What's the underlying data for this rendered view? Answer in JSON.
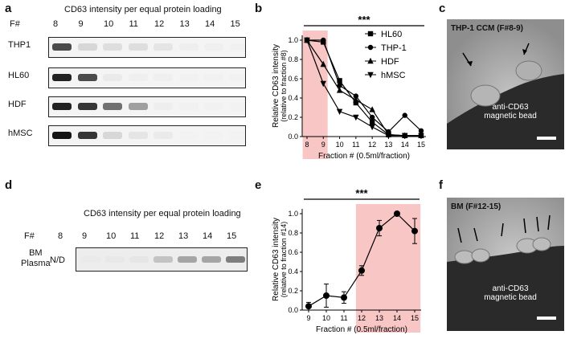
{
  "panel_labels": {
    "a": "a",
    "b": "b",
    "c": "c",
    "d": "d",
    "e": "e",
    "f": "f"
  },
  "panel_a": {
    "title": "CD63 intensity per equal protein loading",
    "f_label": "F#",
    "fractions": [
      "8",
      "9",
      "10",
      "11",
      "12",
      "13",
      "14",
      "15"
    ],
    "rows": [
      {
        "label": "THP1",
        "intensities": [
          0.85,
          0.35,
          0.3,
          0.3,
          0.25,
          0.15,
          0.12,
          0.05
        ]
      },
      {
        "label": "HL60",
        "intensities": [
          0.95,
          0.85,
          0.2,
          0.12,
          0.1,
          0.06,
          0.06,
          0.05
        ]
      },
      {
        "label": "HDF",
        "intensities": [
          0.95,
          0.9,
          0.75,
          0.6,
          0.15,
          0.05,
          0.04,
          0.03
        ]
      },
      {
        "label": "hMSC",
        "intensities": [
          0.98,
          0.9,
          0.35,
          0.25,
          0.2,
          0.03,
          0.02,
          0.02
        ]
      }
    ]
  },
  "panel_d": {
    "title": "CD63 intensity per equal protein loading",
    "f_label": "F#",
    "fractions": [
      "8",
      "9",
      "10",
      "11",
      "12",
      "13",
      "14",
      "15"
    ],
    "row_label_line1": "BM",
    "row_label_line2": "Plasma",
    "nd_label": "N/D",
    "intensities": [
      0.0,
      0.02,
      0.05,
      0.1,
      0.45,
      0.6,
      0.6,
      0.75
    ]
  },
  "panel_c": {
    "caption": "THP-1 CCM (F#8-9)",
    "bead_line1": "anti-CD63",
    "bead_line2": "magnetic bead"
  },
  "panel_f": {
    "caption": "BM (F#12-15)",
    "bead_line1": "anti-CD63",
    "bead_line2": "magnetic bead"
  },
  "chart_data": [
    {
      "id": "b",
      "type": "line",
      "ylabel": "Relative CD63 intensity",
      "ylabel2": "(relative to fraction #8)",
      "xlabel": "Fraction # (0.5ml/fraction)",
      "significance": "***",
      "x": [
        8,
        9,
        10,
        11,
        12,
        13,
        14,
        15
      ],
      "xticklabels": [
        "8",
        "9",
        "10",
        "11",
        "12",
        "13",
        "14",
        "15"
      ],
      "yticks": [
        "0.0",
        "0.2",
        "0.4",
        "0.6",
        "0.8",
        "1.0"
      ],
      "ylim": [
        0,
        1.05
      ],
      "highlight": [
        8,
        9
      ],
      "series": [
        {
          "name": "HL60",
          "marker": "square",
          "values": [
            1.0,
            0.98,
            0.58,
            0.35,
            0.15,
            0.02,
            0.01,
            0.01
          ]
        },
        {
          "name": "THP-1",
          "marker": "circle",
          "values": [
            1.0,
            1.0,
            0.53,
            0.42,
            0.2,
            0.05,
            0.22,
            0.06
          ]
        },
        {
          "name": "HDF",
          "marker": "triangle-up",
          "values": [
            1.0,
            0.75,
            0.48,
            0.38,
            0.28,
            0.02,
            0.01,
            0.01
          ]
        },
        {
          "name": "hMSC",
          "marker": "triangle-down",
          "values": [
            1.0,
            0.55,
            0.26,
            0.2,
            0.1,
            0.01,
            0.01,
            0.01
          ]
        }
      ]
    },
    {
      "id": "e",
      "type": "line",
      "ylabel": "Relative CD63 intensity",
      "ylabel2": "(relative to fraction #14)",
      "xlabel": "Fraction # (0.5ml/fraction)",
      "significance": "***",
      "x": [
        9,
        10,
        11,
        12,
        13,
        14,
        15
      ],
      "xticklabels": [
        "9",
        "10",
        "11",
        "12",
        "13",
        "14",
        "15"
      ],
      "yticks": [
        "0.0",
        "0.2",
        "0.4",
        "0.6",
        "0.8",
        "1.0"
      ],
      "ylim": [
        0,
        1.05
      ],
      "highlight": [
        12,
        15
      ],
      "series": [
        {
          "name": "BM Plasma",
          "marker": "circle",
          "values": [
            0.04,
            0.15,
            0.13,
            0.41,
            0.85,
            1.0,
            0.82
          ],
          "errors": [
            0.04,
            0.12,
            0.06,
            0.05,
            0.08,
            0.0,
            0.13
          ]
        }
      ]
    }
  ]
}
